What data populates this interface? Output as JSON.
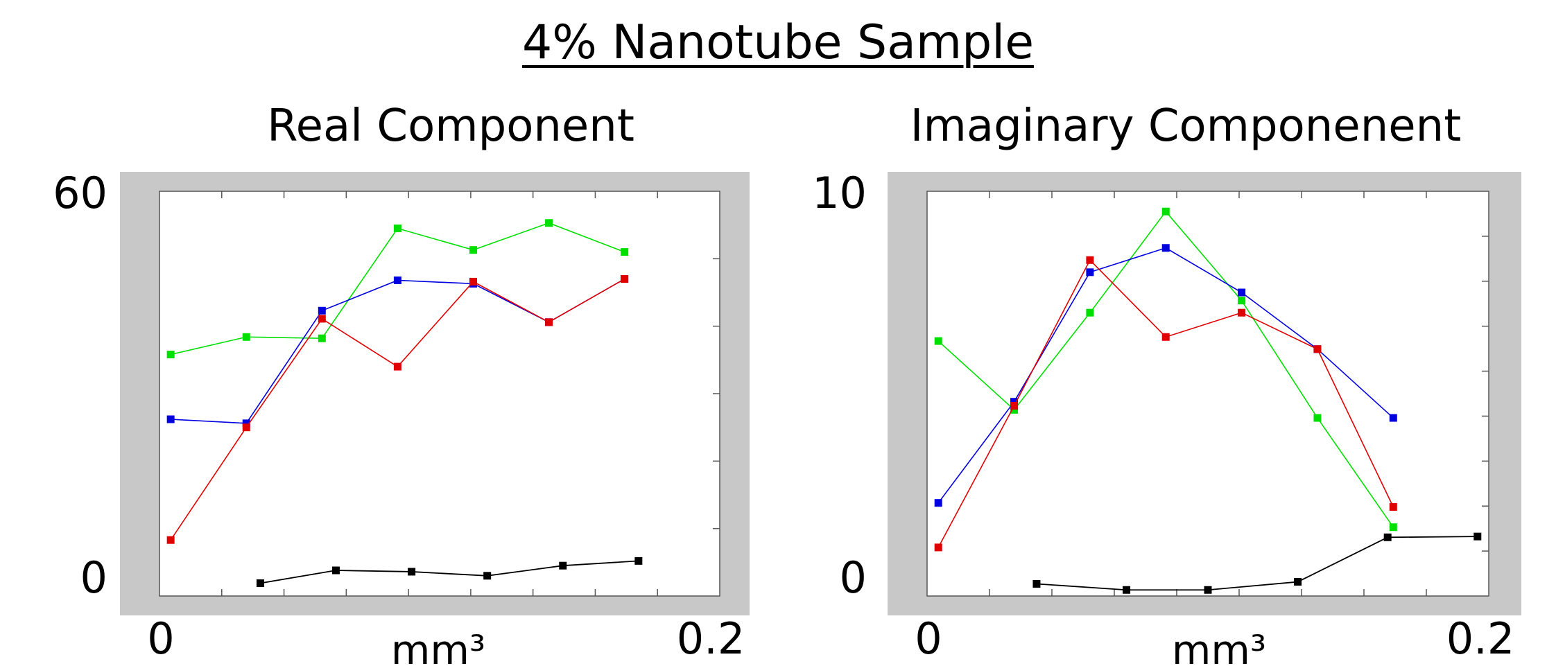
{
  "title": "4% Nanotube Sample",
  "chart_data": [
    {
      "type": "line",
      "title": "Real Component",
      "xlabel": "mm³",
      "ylabel": "",
      "x_tick_labels": [
        "0",
        "0.2"
      ],
      "y_tick_labels": [
        "0",
        "60"
      ],
      "xlim": [
        0,
        0.2
      ],
      "ylim": [
        0,
        60
      ],
      "grid": false,
      "series": [
        {
          "color": "#00e000",
          "x": [
            0.004,
            0.031,
            0.058,
            0.085,
            0.112,
            0.139,
            0.166
          ],
          "y": [
            35.8,
            38.4,
            38.2,
            54.5,
            51.3,
            55.3,
            51.0
          ]
        },
        {
          "color": "#0000e0",
          "x": [
            0.004,
            0.031,
            0.058,
            0.085,
            0.112,
            0.139,
            0.166
          ],
          "y": [
            26.2,
            25.6,
            42.3,
            46.8,
            46.3,
            40.6,
            47.0
          ]
        },
        {
          "color": "#e00000",
          "x": [
            0.004,
            0.031,
            0.058,
            0.085,
            0.112,
            0.139,
            0.166
          ],
          "y": [
            8.3,
            25.0,
            41.1,
            34.0,
            46.6,
            40.6,
            47.0
          ]
        },
        {
          "color": "#000000",
          "x": [
            0.036,
            0.063,
            0.09,
            0.117,
            0.144,
            0.171
          ],
          "y": [
            1.9,
            3.8,
            3.6,
            3.0,
            4.5,
            5.2
          ]
        }
      ]
    },
    {
      "type": "line",
      "title": "Imaginary Componenent",
      "xlabel": "mm³",
      "ylabel": "",
      "x_tick_labels": [
        "0",
        "0.2"
      ],
      "y_tick_labels": [
        "0",
        "10"
      ],
      "xlim": [
        0,
        0.2
      ],
      "ylim": [
        0,
        10
      ],
      "grid": false,
      "series": [
        {
          "color": "#00e000",
          "x": [
            0.004,
            0.031,
            0.058,
            0.085,
            0.112,
            0.139,
            0.166
          ],
          "y": [
            6.3,
            4.6,
            7.0,
            9.5,
            7.3,
            4.4,
            1.7
          ]
        },
        {
          "color": "#0000e0",
          "x": [
            0.004,
            0.031,
            0.058,
            0.085,
            0.112,
            0.139,
            0.166
          ],
          "y": [
            2.3,
            4.8,
            8.0,
            8.6,
            7.5,
            6.1,
            4.4
          ]
        },
        {
          "color": "#e00000",
          "x": [
            0.004,
            0.031,
            0.058,
            0.085,
            0.112,
            0.139,
            0.166
          ],
          "y": [
            1.2,
            4.7,
            8.3,
            6.4,
            7.0,
            6.1,
            2.2
          ]
        },
        {
          "color": "#000000",
          "x": [
            0.039,
            0.071,
            0.1,
            0.132,
            0.164,
            0.196
          ],
          "y": [
            0.3,
            0.15,
            0.15,
            0.35,
            1.45,
            1.47
          ]
        }
      ]
    }
  ]
}
